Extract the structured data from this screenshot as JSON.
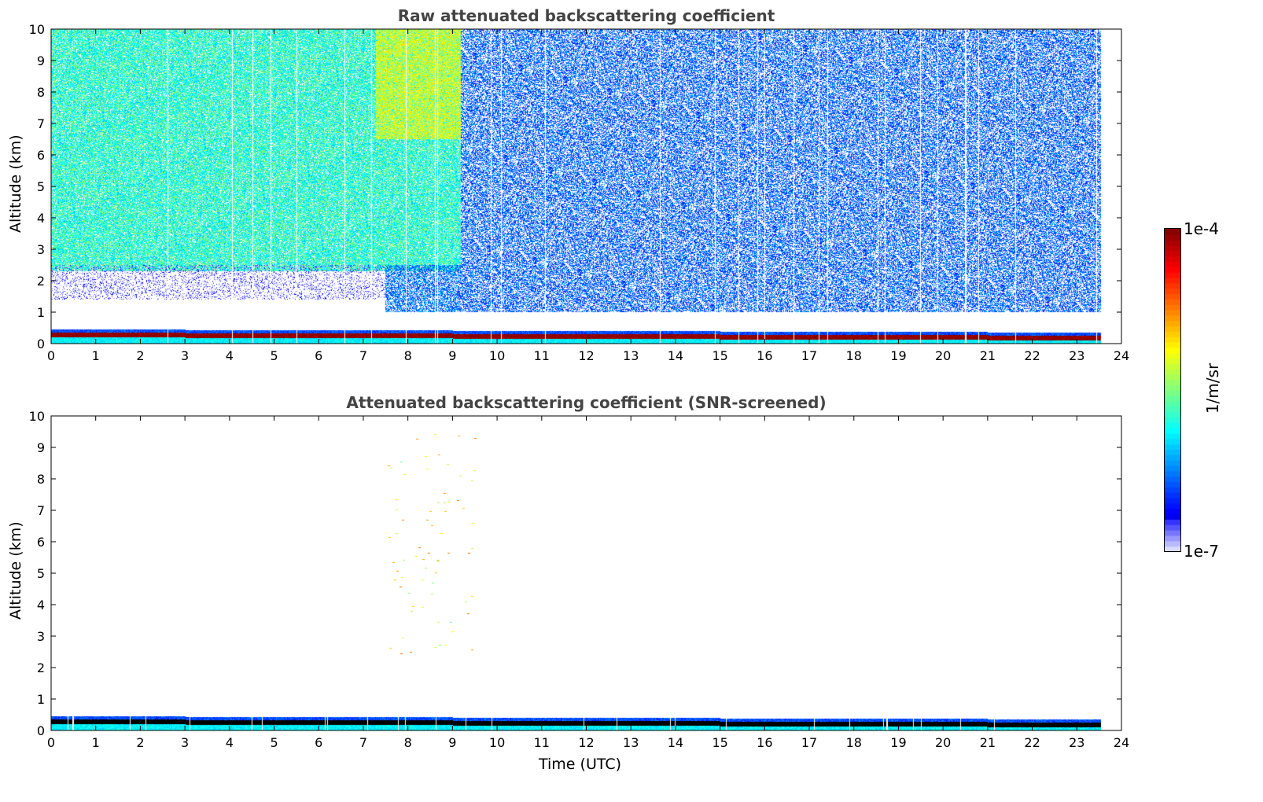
{
  "chart_data": [
    {
      "type": "heatmap",
      "title": "Raw attenuated backscattering coefficient",
      "xlabel": "",
      "ylabel": "Altitude (km)",
      "xlim": [
        0,
        24
      ],
      "ylim": [
        0,
        10
      ],
      "xticks": [
        "0",
        "1",
        "2",
        "3",
        "4",
        "5",
        "6",
        "7",
        "8",
        "9",
        "10",
        "11",
        "12",
        "13",
        "14",
        "15",
        "16",
        "17",
        "18",
        "19",
        "20",
        "21",
        "22",
        "23",
        "24"
      ],
      "yticks": [
        "0",
        "1",
        "2",
        "3",
        "4",
        "5",
        "6",
        "7",
        "8",
        "9",
        "10"
      ],
      "data_end_hour": 23.55,
      "regions": [
        {
          "t": [
            0,
            9.2
          ],
          "alt": [
            2.3,
            10
          ],
          "log10_value": -5.75,
          "spread": 0.35,
          "density": 0.85
        },
        {
          "t": [
            7.3,
            9.2
          ],
          "alt": [
            6.5,
            10
          ],
          "log10_value": -5.3,
          "spread": 0.3,
          "density": 0.9
        },
        {
          "t": [
            0,
            7.5
          ],
          "alt": [
            1.4,
            2.5
          ],
          "log10_value": -6.8,
          "spread": 0.2,
          "density": 0.25
        },
        {
          "t": [
            7.5,
            9.2
          ],
          "alt": [
            1.0,
            2.5
          ],
          "log10_value": -6.3,
          "spread": 0.3,
          "density": 0.6
        },
        {
          "t": [
            9.2,
            23.55
          ],
          "alt": [
            1.0,
            10
          ],
          "log10_value": -6.35,
          "spread": 0.25,
          "density": 0.55
        },
        {
          "t": [
            0,
            23.55
          ],
          "alt": [
            0,
            0.2
          ],
          "log10_value": -5.9,
          "spread": 0.15,
          "density": 1
        },
        {
          "t": [
            0,
            23.55
          ],
          "alt": [
            0.2,
            0.35
          ],
          "log10_value": -4.05,
          "spread": 0.1,
          "density": 1
        },
        {
          "t": [
            0,
            23.55
          ],
          "alt": [
            0.35,
            0.43
          ],
          "log10_value": -6.4,
          "spread": 0.2,
          "density": 1
        }
      ]
    },
    {
      "type": "heatmap",
      "title": "Attenuated backscattering coefficient (SNR-screened)",
      "xlabel": "Time (UTC)",
      "ylabel": "Altitude (km)",
      "xlim": [
        0,
        24
      ],
      "ylim": [
        0,
        10
      ],
      "xticks": [
        "0",
        "1",
        "2",
        "3",
        "4",
        "5",
        "6",
        "7",
        "8",
        "9",
        "10",
        "11",
        "12",
        "13",
        "14",
        "15",
        "16",
        "17",
        "18",
        "19",
        "20",
        "21",
        "22",
        "23",
        "24"
      ],
      "yticks": [
        "0",
        "1",
        "2",
        "3",
        "4",
        "5",
        "6",
        "7",
        "8",
        "9",
        "10"
      ],
      "data_end_hour": 23.55,
      "regions": [
        {
          "t": [
            0,
            23.55
          ],
          "alt": [
            0,
            0.2
          ],
          "log10_value": -5.9,
          "spread": 0.15,
          "density": 1
        },
        {
          "t": [
            0,
            23.55
          ],
          "alt": [
            0.2,
            0.35
          ],
          "log10_value": "screened-black",
          "density": 1
        },
        {
          "t": [
            0,
            23.55
          ],
          "alt": [
            0.35,
            0.43
          ],
          "log10_value": -6.4,
          "spread": 0.2,
          "density": 1
        }
      ],
      "sparse_points_hours": [
        7.5,
        9.5
      ],
      "sparse_points_alt": [
        2.3,
        9.8
      ]
    }
  ],
  "colorbar": {
    "max_label": "1e-4",
    "min_label": "1e-7",
    "unit": "1/m/sr",
    "log10_range": [
      -7,
      -4
    ]
  },
  "colors": {
    "title": "#444444",
    "screened": "#000000"
  }
}
